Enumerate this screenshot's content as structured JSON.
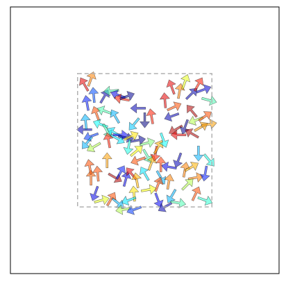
{
  "chart_data": {
    "type": "quiver",
    "title": "",
    "xlabel": "",
    "ylabel": "",
    "xticks_visible": false,
    "yticks_visible": false,
    "grid": false,
    "xlim": [
      -1.0,
      1.0
    ],
    "ylim": [
      -1.0,
      1.0
    ],
    "region": {
      "x": [
        -0.5,
        0.5
      ],
      "y": [
        -0.5,
        0.5
      ],
      "style": "dashed",
      "color": "#b0b0b0"
    },
    "colormap": "jet",
    "arrow_alpha": 0.55,
    "arrows": [
      {
        "x": -0.45,
        "y": 0.42,
        "angle": 120,
        "c": 0.9
      },
      {
        "x": -0.4,
        "y": 0.46,
        "angle": 70,
        "c": 0.75
      },
      {
        "x": -0.43,
        "y": 0.28,
        "angle": 100,
        "c": 0.15
      },
      {
        "x": -0.38,
        "y": 0.34,
        "angle": 95,
        "c": 0.2
      },
      {
        "x": -0.36,
        "y": 0.2,
        "angle": 110,
        "c": 0.8
      },
      {
        "x": -0.3,
        "y": 0.33,
        "angle": 60,
        "c": 0.05
      },
      {
        "x": -0.25,
        "y": 0.37,
        "angle": 185,
        "c": 0.45
      },
      {
        "x": -0.2,
        "y": 0.34,
        "angle": 160,
        "c": 0.1
      },
      {
        "x": -0.17,
        "y": 0.31,
        "angle": 170,
        "c": 0.85
      },
      {
        "x": -0.13,
        "y": 0.33,
        "angle": 20,
        "c": 0.02
      },
      {
        "x": -0.45,
        "y": 0.08,
        "angle": 180,
        "c": 0.05
      },
      {
        "x": -0.4,
        "y": 0.03,
        "angle": 200,
        "c": 0.18
      },
      {
        "x": -0.43,
        "y": -0.02,
        "angle": 230,
        "c": 0.3
      },
      {
        "x": -0.38,
        "y": -0.05,
        "angle": 210,
        "c": 0.55
      },
      {
        "x": -0.33,
        "y": 0.12,
        "angle": 160,
        "c": 0.38
      },
      {
        "x": -0.28,
        "y": 0.07,
        "angle": 300,
        "c": 0.45
      },
      {
        "x": -0.23,
        "y": 0.06,
        "angle": 150,
        "c": 0.35
      },
      {
        "x": -0.27,
        "y": 0.0,
        "angle": 100,
        "c": 0.85
      },
      {
        "x": -0.2,
        "y": 0.01,
        "angle": 330,
        "c": 0.35
      },
      {
        "x": -0.18,
        "y": 0.04,
        "angle": 0,
        "c": 0.12
      },
      {
        "x": -0.14,
        "y": 0.02,
        "angle": 350,
        "c": 0.05
      },
      {
        "x": -0.1,
        "y": 0.03,
        "angle": 25,
        "c": 0.65
      },
      {
        "x": -0.12,
        "y": -0.05,
        "angle": 260,
        "c": 0.4
      },
      {
        "x": -0.05,
        "y": 0.0,
        "angle": 10,
        "c": 0.02
      },
      {
        "x": 0.02,
        "y": -0.02,
        "angle": 15,
        "c": 0.5
      },
      {
        "x": -0.08,
        "y": 0.12,
        "angle": 230,
        "c": 0.32
      },
      {
        "x": 0.0,
        "y": 0.15,
        "angle": 270,
        "c": 0.0
      },
      {
        "x": -0.05,
        "y": 0.24,
        "angle": 180,
        "c": 0.05
      },
      {
        "x": 0.05,
        "y": 0.18,
        "angle": 100,
        "c": 0.85
      },
      {
        "x": -0.35,
        "y": -0.25,
        "angle": 95,
        "c": 0.8
      },
      {
        "x": -0.4,
        "y": -0.28,
        "angle": 90,
        "c": 0.78
      },
      {
        "x": -0.37,
        "y": -0.4,
        "angle": 250,
        "c": 0.1
      },
      {
        "x": -0.32,
        "y": -0.45,
        "angle": 15,
        "c": 0.6
      },
      {
        "x": -0.22,
        "y": -0.28,
        "angle": 330,
        "c": 0.95
      },
      {
        "x": -0.18,
        "y": -0.24,
        "angle": 60,
        "c": 0.15
      },
      {
        "x": -0.14,
        "y": -0.29,
        "angle": 75,
        "c": 0.1
      },
      {
        "x": -0.1,
        "y": -0.25,
        "angle": 130,
        "c": 0.9
      },
      {
        "x": -0.06,
        "y": -0.3,
        "angle": 100,
        "c": 0.7
      },
      {
        "x": -0.08,
        "y": -0.4,
        "angle": 95,
        "c": 0.65
      },
      {
        "x": -0.12,
        "y": -0.45,
        "angle": 200,
        "c": 0.35
      },
      {
        "x": -0.2,
        "y": -0.47,
        "angle": 320,
        "c": 0.3
      },
      {
        "x": -0.25,
        "y": -0.44,
        "angle": 60,
        "c": 0.8
      },
      {
        "x": -0.16,
        "y": -0.52,
        "angle": 190,
        "c": 0.55
      },
      {
        "x": -0.08,
        "y": -0.52,
        "angle": 200,
        "c": 0.18
      },
      {
        "x": 0.1,
        "y": -0.45,
        "angle": 290,
        "c": 0.12
      },
      {
        "x": 0.15,
        "y": -0.5,
        "angle": 210,
        "c": 0.05
      },
      {
        "x": 0.2,
        "y": -0.42,
        "angle": 240,
        "c": 0.3
      },
      {
        "x": 0.25,
        "y": -0.47,
        "angle": 350,
        "c": 0.45
      },
      {
        "x": 0.12,
        "y": -0.28,
        "angle": 300,
        "c": 0.3
      },
      {
        "x": 0.18,
        "y": -0.31,
        "angle": 80,
        "c": 0.75
      },
      {
        "x": 0.1,
        "y": -0.33,
        "angle": 70,
        "c": 0.8
      },
      {
        "x": 0.03,
        "y": -0.37,
        "angle": 10,
        "c": 0.62
      },
      {
        "x": 0.0,
        "y": -0.25,
        "angle": 120,
        "c": 0.35
      },
      {
        "x": 0.02,
        "y": -0.12,
        "angle": 300,
        "c": 0.45
      },
      {
        "x": 0.05,
        "y": -0.17,
        "angle": 70,
        "c": 0.7
      },
      {
        "x": 0.08,
        "y": -0.1,
        "angle": 260,
        "c": 0.85
      },
      {
        "x": 0.12,
        "y": -0.18,
        "angle": 90,
        "c": 0.82
      },
      {
        "x": 0.18,
        "y": -0.2,
        "angle": 170,
        "c": 0.1
      },
      {
        "x": 0.25,
        "y": -0.15,
        "angle": 250,
        "c": 0.05
      },
      {
        "x": 0.3,
        "y": -0.22,
        "angle": 80,
        "c": 0.75
      },
      {
        "x": 0.35,
        "y": -0.2,
        "angle": 30,
        "c": 0.7
      },
      {
        "x": 0.38,
        "y": -0.28,
        "angle": 10,
        "c": 0.75
      },
      {
        "x": 0.32,
        "y": -0.33,
        "angle": 45,
        "c": 0.55
      },
      {
        "x": 0.38,
        "y": -0.4,
        "angle": 65,
        "c": 0.8
      },
      {
        "x": 0.45,
        "y": -0.25,
        "angle": 260,
        "c": 0.15
      },
      {
        "x": 0.48,
        "y": -0.15,
        "angle": 310,
        "c": 0.4
      },
      {
        "x": 0.45,
        "y": -0.45,
        "angle": 340,
        "c": 0.42
      },
      {
        "x": 0.15,
        "y": 0.3,
        "angle": 95,
        "c": 0.9
      },
      {
        "x": 0.2,
        "y": 0.18,
        "angle": 200,
        "c": 0.05
      },
      {
        "x": 0.23,
        "y": 0.08,
        "angle": 210,
        "c": 0.95
      },
      {
        "x": 0.25,
        "y": 0.04,
        "angle": 180,
        "c": 0.9
      },
      {
        "x": 0.3,
        "y": 0.1,
        "angle": 250,
        "c": 0.02
      },
      {
        "x": 0.35,
        "y": 0.05,
        "angle": 150,
        "c": 0.95
      },
      {
        "x": 0.38,
        "y": 0.15,
        "angle": 200,
        "c": 0.55
      },
      {
        "x": 0.42,
        "y": 0.1,
        "angle": 30,
        "c": 0.72
      },
      {
        "x": 0.45,
        "y": 0.18,
        "angle": 35,
        "c": 0.8
      },
      {
        "x": 0.48,
        "y": 0.12,
        "angle": 10,
        "c": 0.72
      },
      {
        "x": 0.2,
        "y": 0.4,
        "angle": 110,
        "c": 0.9
      },
      {
        "x": 0.26,
        "y": 0.37,
        "angle": 80,
        "c": 0.75
      },
      {
        "x": 0.3,
        "y": 0.44,
        "angle": 70,
        "c": 0.6
      },
      {
        "x": 0.35,
        "y": 0.35,
        "angle": 45,
        "c": 0.05
      },
      {
        "x": 0.4,
        "y": 0.42,
        "angle": 60,
        "c": 0.85
      },
      {
        "x": 0.44,
        "y": 0.38,
        "angle": 20,
        "c": 0.08
      },
      {
        "x": 0.48,
        "y": 0.3,
        "angle": 345,
        "c": 0.45
      },
      {
        "x": 0.35,
        "y": 0.22,
        "angle": 130,
        "c": 0.95
      },
      {
        "x": 0.1,
        "y": -0.05,
        "angle": 60,
        "c": 0.7
      },
      {
        "x": 0.14,
        "y": 0.0,
        "angle": 290,
        "c": 0.38
      },
      {
        "x": -0.05,
        "y": -0.15,
        "angle": 200,
        "c": 0.8
      },
      {
        "x": -0.28,
        "y": -0.15,
        "angle": 90,
        "c": 0.72
      },
      {
        "x": -0.41,
        "y": -0.2,
        "angle": 100,
        "c": 0.8
      },
      {
        "x": -0.3,
        "y": 0.22,
        "angle": 160,
        "c": 0.45
      },
      {
        "x": -0.22,
        "y": 0.18,
        "angle": 120,
        "c": 0.3
      },
      {
        "x": -0.44,
        "y": 0.14,
        "angle": 95,
        "c": 0.3
      },
      {
        "x": 0.22,
        "y": 0.25,
        "angle": 25,
        "c": 0.8
      },
      {
        "x": -0.06,
        "y": -0.08,
        "angle": 40,
        "c": 0.62
      },
      {
        "x": 0.4,
        "y": -0.1,
        "angle": 270,
        "c": 0.3
      }
    ]
  }
}
